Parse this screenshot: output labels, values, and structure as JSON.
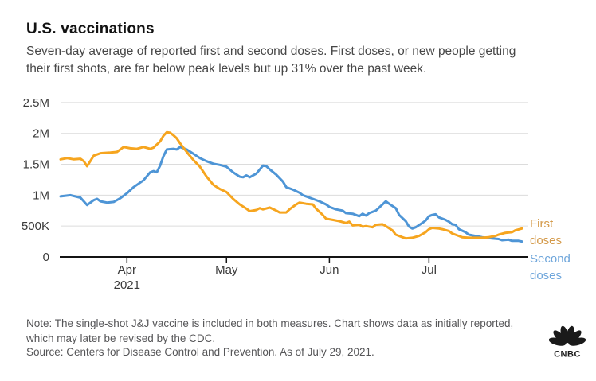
{
  "header": {
    "title": "U.S. vaccinations",
    "subtitle_line1": "Seven-day average of reported first and second doses. First doses, or new people getting",
    "subtitle_line2": "their first shots, are far below peak levels but up 31% over the past week."
  },
  "legend": {
    "first_label": "First doses",
    "second_label": "Second doses"
  },
  "footer": {
    "note_line1": "Note: The single-shot J&J vaccine is included in both measures. Chart shows data as initially reported,",
    "note_line2": "which may later be revised by the CDC.",
    "source": "Source: Centers for Disease Control and Prevention. As of July 29, 2021.",
    "logo_text": "CNBC"
  },
  "colors": {
    "first_doses": "#F6A51F",
    "second_doses": "#4E95D6",
    "first_label_text": "#D49A4A",
    "second_label_text": "#6FA6DB",
    "grid": "#DCDCDC",
    "axis": "#141414",
    "axis_text": "#3A3A3A"
  },
  "chart_data": {
    "type": "line",
    "title": "U.S. vaccinations",
    "x_start_date": "2021-03-12",
    "x_end_date": "2021-07-29",
    "x_unit": "days since 2021-03-12",
    "x_range_days": [
      0,
      139
    ],
    "ylim": [
      0,
      2500000
    ],
    "grid": true,
    "legend_position": "right",
    "x_ticks": [
      {
        "label": "Apr",
        "sub_label": "2021",
        "day": 20
      },
      {
        "label": "May",
        "day": 50
      },
      {
        "label": "Jun",
        "day": 81
      },
      {
        "label": "Jul",
        "day": 111
      }
    ],
    "y_ticks": [
      {
        "label": "0",
        "value": 0
      },
      {
        "label": "500K",
        "value": 0.5
      },
      {
        "label": "1M",
        "value": 1
      },
      {
        "label": "1.5M",
        "value": 1.5
      },
      {
        "label": "2M",
        "value": 2
      },
      {
        "label": "2.5M",
        "value": 2.5
      }
    ],
    "value_unit": "millions of doses per day (7-day average)",
    "series": [
      {
        "name": "First doses",
        "color_key": "first_doses",
        "points": [
          [
            0,
            1.58
          ],
          [
            2,
            1.6
          ],
          [
            4,
            1.58
          ],
          [
            6,
            1.59
          ],
          [
            7,
            1.55
          ],
          [
            8,
            1.47
          ],
          [
            10,
            1.64
          ],
          [
            12,
            1.68
          ],
          [
            15,
            1.69
          ],
          [
            17,
            1.7
          ],
          [
            19,
            1.78
          ],
          [
            21,
            1.76
          ],
          [
            23,
            1.75
          ],
          [
            25,
            1.78
          ],
          [
            27,
            1.75
          ],
          [
            28,
            1.77
          ],
          [
            30,
            1.87
          ],
          [
            31,
            1.96
          ],
          [
            32,
            2.02
          ],
          [
            33,
            2.01
          ],
          [
            34,
            1.97
          ],
          [
            35,
            1.92
          ],
          [
            36,
            1.84
          ],
          [
            38,
            1.7
          ],
          [
            40,
            1.57
          ],
          [
            42,
            1.46
          ],
          [
            44,
            1.3
          ],
          [
            46,
            1.17
          ],
          [
            48,
            1.1
          ],
          [
            50,
            1.05
          ],
          [
            52,
            0.94
          ],
          [
            54,
            0.85
          ],
          [
            56,
            0.78
          ],
          [
            57,
            0.74
          ],
          [
            59,
            0.76
          ],
          [
            60,
            0.79
          ],
          [
            61,
            0.77
          ],
          [
            63,
            0.8
          ],
          [
            65,
            0.75
          ],
          [
            66,
            0.72
          ],
          [
            68,
            0.72
          ],
          [
            69,
            0.77
          ],
          [
            71,
            0.85
          ],
          [
            72,
            0.88
          ],
          [
            74,
            0.86
          ],
          [
            76,
            0.85
          ],
          [
            77,
            0.78
          ],
          [
            79,
            0.68
          ],
          [
            80,
            0.62
          ],
          [
            82,
            0.6
          ],
          [
            84,
            0.58
          ],
          [
            86,
            0.55
          ],
          [
            87,
            0.57
          ],
          [
            88,
            0.51
          ],
          [
            90,
            0.52
          ],
          [
            91,
            0.49
          ],
          [
            92,
            0.5
          ],
          [
            94,
            0.48
          ],
          [
            95,
            0.52
          ],
          [
            97,
            0.53
          ],
          [
            98,
            0.5
          ],
          [
            100,
            0.43
          ],
          [
            101,
            0.36
          ],
          [
            103,
            0.32
          ],
          [
            104,
            0.3
          ],
          [
            106,
            0.31
          ],
          [
            108,
            0.34
          ],
          [
            110,
            0.4
          ],
          [
            111,
            0.45
          ],
          [
            112,
            0.47
          ],
          [
            114,
            0.46
          ],
          [
            115,
            0.45
          ],
          [
            117,
            0.42
          ],
          [
            118,
            0.38
          ],
          [
            120,
            0.34
          ],
          [
            121,
            0.32
          ],
          [
            123,
            0.31
          ],
          [
            125,
            0.31
          ],
          [
            127,
            0.31
          ],
          [
            129,
            0.32
          ],
          [
            131,
            0.34
          ],
          [
            132,
            0.36
          ],
          [
            134,
            0.39
          ],
          [
            136,
            0.4
          ],
          [
            137,
            0.43
          ],
          [
            139,
            0.46
          ]
        ]
      },
      {
        "name": "Second doses",
        "color_key": "second_doses",
        "points": [
          [
            0,
            0.98
          ],
          [
            3,
            1.0
          ],
          [
            6,
            0.96
          ],
          [
            8,
            0.84
          ],
          [
            10,
            0.92
          ],
          [
            11,
            0.94
          ],
          [
            12,
            0.9
          ],
          [
            14,
            0.88
          ],
          [
            16,
            0.89
          ],
          [
            18,
            0.95
          ],
          [
            20,
            1.03
          ],
          [
            22,
            1.13
          ],
          [
            25,
            1.24
          ],
          [
            27,
            1.37
          ],
          [
            28,
            1.39
          ],
          [
            29,
            1.37
          ],
          [
            30,
            1.48
          ],
          [
            31,
            1.63
          ],
          [
            32,
            1.74
          ],
          [
            34,
            1.75
          ],
          [
            35,
            1.74
          ],
          [
            36,
            1.78
          ],
          [
            38,
            1.74
          ],
          [
            40,
            1.67
          ],
          [
            42,
            1.6
          ],
          [
            44,
            1.55
          ],
          [
            46,
            1.51
          ],
          [
            48,
            1.49
          ],
          [
            50,
            1.46
          ],
          [
            52,
            1.37
          ],
          [
            54,
            1.3
          ],
          [
            55,
            1.29
          ],
          [
            56,
            1.32
          ],
          [
            57,
            1.29
          ],
          [
            59,
            1.35
          ],
          [
            61,
            1.48
          ],
          [
            62,
            1.47
          ],
          [
            63,
            1.42
          ],
          [
            65,
            1.33
          ],
          [
            67,
            1.22
          ],
          [
            68,
            1.13
          ],
          [
            70,
            1.09
          ],
          [
            72,
            1.04
          ],
          [
            73,
            1.0
          ],
          [
            75,
            0.96
          ],
          [
            76,
            0.94
          ],
          [
            78,
            0.9
          ],
          [
            80,
            0.85
          ],
          [
            81,
            0.81
          ],
          [
            83,
            0.77
          ],
          [
            85,
            0.75
          ],
          [
            86,
            0.71
          ],
          [
            88,
            0.7
          ],
          [
            90,
            0.66
          ],
          [
            91,
            0.7
          ],
          [
            92,
            0.67
          ],
          [
            93,
            0.71
          ],
          [
            95,
            0.75
          ],
          [
            97,
            0.85
          ],
          [
            98,
            0.9
          ],
          [
            99,
            0.86
          ],
          [
            101,
            0.79
          ],
          [
            102,
            0.68
          ],
          [
            104,
            0.58
          ],
          [
            105,
            0.49
          ],
          [
            106,
            0.46
          ],
          [
            107,
            0.48
          ],
          [
            109,
            0.55
          ],
          [
            110,
            0.59
          ],
          [
            111,
            0.66
          ],
          [
            112,
            0.68
          ],
          [
            113,
            0.69
          ],
          [
            114,
            0.64
          ],
          [
            116,
            0.6
          ],
          [
            117,
            0.57
          ],
          [
            118,
            0.53
          ],
          [
            119,
            0.52
          ],
          [
            120,
            0.45
          ],
          [
            122,
            0.4
          ],
          [
            123,
            0.36
          ],
          [
            125,
            0.34
          ],
          [
            127,
            0.32
          ],
          [
            128,
            0.31
          ],
          [
            130,
            0.3
          ],
          [
            132,
            0.29
          ],
          [
            133,
            0.27
          ],
          [
            135,
            0.28
          ],
          [
            136,
            0.26
          ],
          [
            138,
            0.26
          ],
          [
            139,
            0.25
          ]
        ]
      }
    ]
  }
}
